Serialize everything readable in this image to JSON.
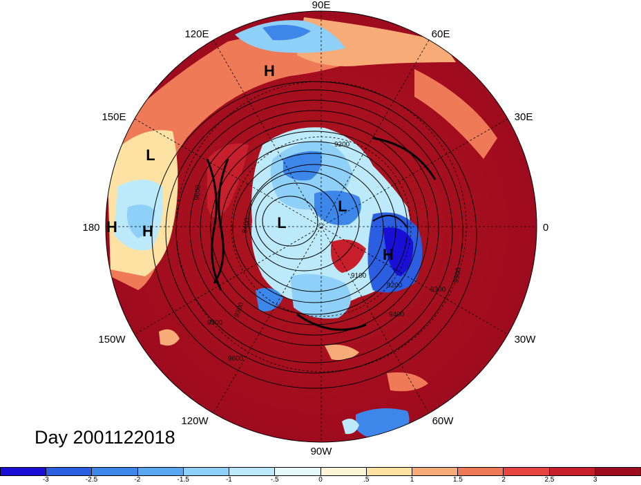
{
  "map": {
    "projection": "north-polar-stereographic",
    "field": "shaded anomaly with geopotential height contours",
    "longitude_labels": [
      "90E",
      "60E",
      "30E",
      "0",
      "30W",
      "60W",
      "90W",
      "120W",
      "150W",
      "180",
      "150E",
      "120E"
    ],
    "pressure_centers": [
      {
        "label": "H",
        "lon_lat_note": "near 100E"
      },
      {
        "label": "L",
        "lon_lat_note": "near 160E"
      },
      {
        "label": "H",
        "lon_lat_note": "near 180"
      },
      {
        "label": "H",
        "lon_lat_note": "near 175E"
      },
      {
        "label": "L",
        "lon_lat_note": "pole"
      },
      {
        "label": "L",
        "lon_lat_note": "near 45E"
      },
      {
        "label": "H",
        "lon_lat_note": "near 15W"
      }
    ],
    "contour_labels": [
      "8400",
      "9200",
      "9600",
      "9500",
      "9300",
      "9400",
      "9600",
      "9500",
      "9200",
      "9300",
      "9100"
    ]
  },
  "title": "Day 2001122018",
  "colorbar": {
    "colors": [
      "#1a0fd6",
      "#2b5ee0",
      "#3d86ea",
      "#5aa8f2",
      "#8fd0f8",
      "#bdeafa",
      "#e6f9fb",
      "#fcf6d6",
      "#fde2a4",
      "#f7ac78",
      "#ef7a58",
      "#e64440",
      "#c7202c",
      "#9e0b1e"
    ],
    "tick_labels": [
      "-3",
      "-2.5",
      "-2",
      "-1.5",
      "-1",
      "-.5",
      "0",
      ".5",
      "1",
      "1.5",
      "2",
      "2.5",
      "3"
    ]
  }
}
